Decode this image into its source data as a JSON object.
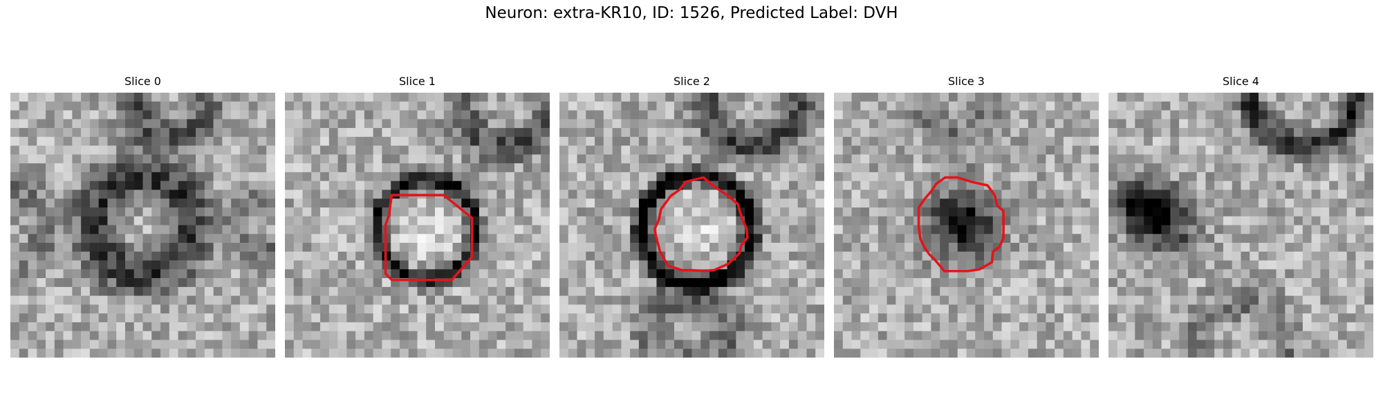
{
  "figure": {
    "title": "Neuron: extra-KR10, ID: 1526, Predicted Label: DVH"
  },
  "panels": [
    {
      "title": "Slice 0"
    },
    {
      "title": "Slice 1"
    },
    {
      "title": "Slice 2"
    },
    {
      "title": "Slice 3"
    },
    {
      "title": "Slice 4"
    }
  ],
  "colors": {
    "contour": "#e3141b",
    "background": "#ffffff"
  }
}
